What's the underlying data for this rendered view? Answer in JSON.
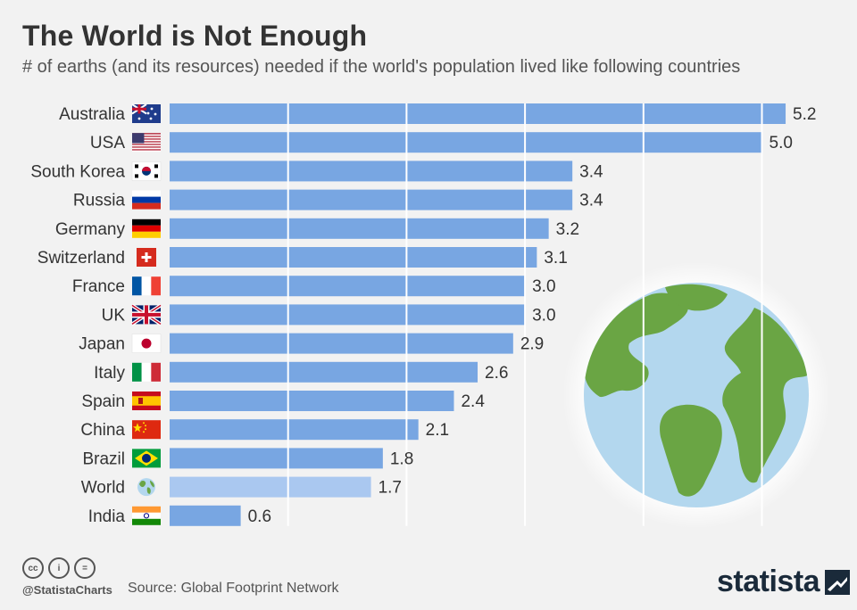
{
  "header": {
    "title": "The World is Not Enough",
    "subtitle": "# of earths (and its resources) needed if the world's population lived like following countries"
  },
  "chart_data": {
    "type": "bar",
    "orientation": "horizontal",
    "title": "The World is Not Enough",
    "subtitle": "# of earths (and its resources) needed if the world's population lived like following countries",
    "xlabel": "",
    "ylabel": "",
    "xlim": [
      0,
      5.2
    ],
    "grid": true,
    "categories": [
      "Australia",
      "USA",
      "South Korea",
      "Russia",
      "Germany",
      "Switzerland",
      "France",
      "UK",
      "Japan",
      "Italy",
      "Spain",
      "China",
      "Brazil",
      "World",
      "India"
    ],
    "values": [
      5.2,
      5.0,
      3.4,
      3.4,
      3.2,
      3.1,
      3.0,
      3.0,
      2.9,
      2.6,
      2.4,
      2.1,
      1.8,
      1.7,
      0.6
    ],
    "value_labels": [
      "5.2",
      "5.0",
      "3.4",
      "3.4",
      "3.2",
      "3.1",
      "3.0",
      "3.0",
      "2.9",
      "2.6",
      "2.4",
      "2.1",
      "1.8",
      "1.7",
      "0.6"
    ],
    "highlight": "World",
    "colors": {
      "bar": "#78a6e2",
      "highlight_bar": "#aac8f0",
      "grid": "#ffffff"
    }
  },
  "footer": {
    "handle": "@StatistaCharts",
    "source": "Source: Global Footprint Network",
    "brand": "statista",
    "cc_icons": [
      "cc-icon",
      "by-icon",
      "nd-icon"
    ]
  }
}
